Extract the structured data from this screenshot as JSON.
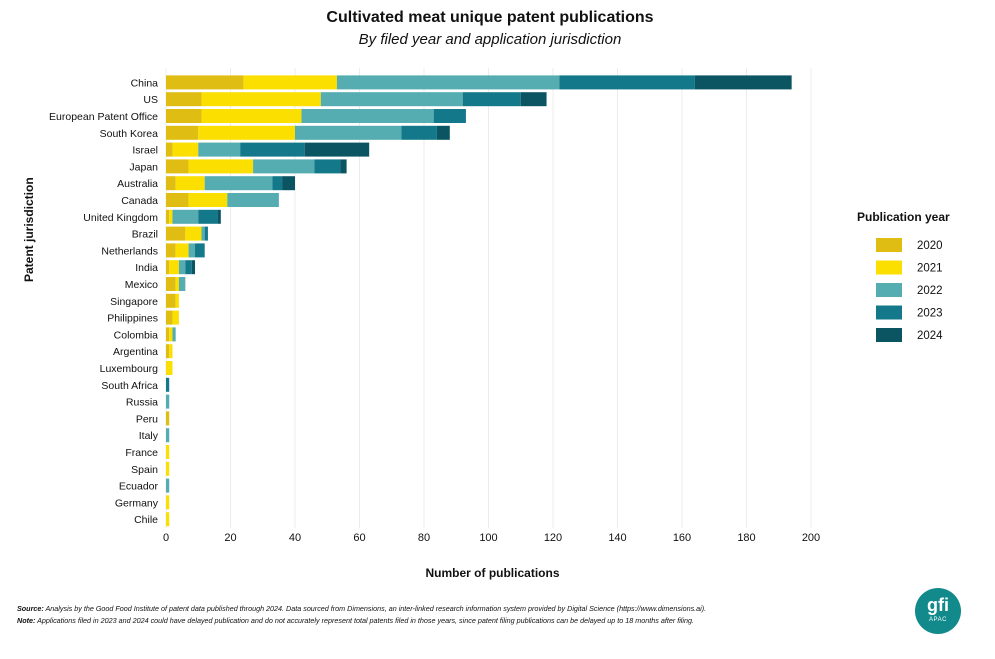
{
  "header": {
    "title": "Cultivated meat unique patent publications",
    "subtitle": "By filed year and application jurisdiction"
  },
  "footer": {
    "source_label": "Source:",
    "source_text": " Analysis by the Good Food Institute of patent data published through 2024. Data sourced from Dimensions, an inter-linked research information system provided by Digital Science (https://www.dimensions.ai).",
    "note_label": "Note:",
    "note_text": " Applications filed in 2023 and 2024 could have delayed publication and do not accurately represent total patents filed in those years, since patent filing publications can be delayed up to 18 months after filing."
  },
  "logo": {
    "mark": "gfi",
    "sub": "APAC"
  },
  "colors": {
    "2020": "#e0bd13",
    "2021": "#fbdf01",
    "2022": "#55adb2",
    "2023": "#13798a",
    "2024": "#0b5563",
    "grid": "#ececec",
    "text": "#111111"
  },
  "chart_data": {
    "type": "bar",
    "orientation": "horizontal",
    "stacked": true,
    "title": "Cultivated meat unique patent publications",
    "subtitle": "By filed year and application jurisdiction",
    "xlabel": "Number of publications",
    "ylabel": "Patent jurisdiction",
    "xlim": [
      0,
      200
    ],
    "xticks": [
      0,
      20,
      40,
      60,
      80,
      100,
      120,
      140,
      160,
      180,
      200
    ],
    "grid": "vertical",
    "legend": {
      "title": "Publication year",
      "position": "right"
    },
    "categories": [
      "China",
      "US",
      "European Patent Office",
      "South Korea",
      "Israel",
      "Japan",
      "Australia",
      "Canada",
      "United Kingdom",
      "Brazil",
      "Netherlands",
      "India",
      "Mexico",
      "Singapore",
      "Philippines",
      "Colombia",
      "Argentina",
      "Luxembourg",
      "South Africa",
      "Russia",
      "Peru",
      "Italy",
      "France",
      "Spain",
      "Ecuador",
      "Germany",
      "Chile"
    ],
    "series": [
      {
        "name": "2020",
        "values": [
          24,
          11,
          11,
          10,
          2,
          7,
          3,
          7,
          1,
          6,
          3,
          1,
          3,
          3,
          2,
          1,
          1,
          0,
          0,
          0,
          1,
          0,
          0,
          0,
          0,
          0,
          0
        ]
      },
      {
        "name": "2021",
        "values": [
          29,
          37,
          31,
          30,
          8,
          20,
          9,
          12,
          1,
          5,
          4,
          3,
          1,
          1,
          2,
          1,
          1,
          2,
          0,
          0,
          0,
          0,
          1,
          1,
          0,
          1,
          1
        ]
      },
      {
        "name": "2022",
        "values": [
          69,
          44,
          41,
          33,
          13,
          19,
          21,
          16,
          8,
          1,
          2,
          2,
          2,
          0,
          0,
          1,
          0,
          0,
          0,
          1,
          0,
          1,
          0,
          0,
          1,
          0,
          0
        ]
      },
      {
        "name": "2023",
        "values": [
          42,
          18,
          10,
          11,
          20,
          8,
          3,
          0,
          6,
          1,
          3,
          2,
          0,
          0,
          0,
          0,
          0,
          0,
          1,
          0,
          0,
          0,
          0,
          0,
          0,
          0,
          0
        ]
      },
      {
        "name": "2024",
        "values": [
          30,
          8,
          0,
          4,
          20,
          2,
          4,
          0,
          1,
          0,
          0,
          1,
          0,
          0,
          0,
          0,
          0,
          0,
          0,
          0,
          0,
          0,
          0,
          0,
          0,
          0,
          0
        ]
      }
    ]
  }
}
